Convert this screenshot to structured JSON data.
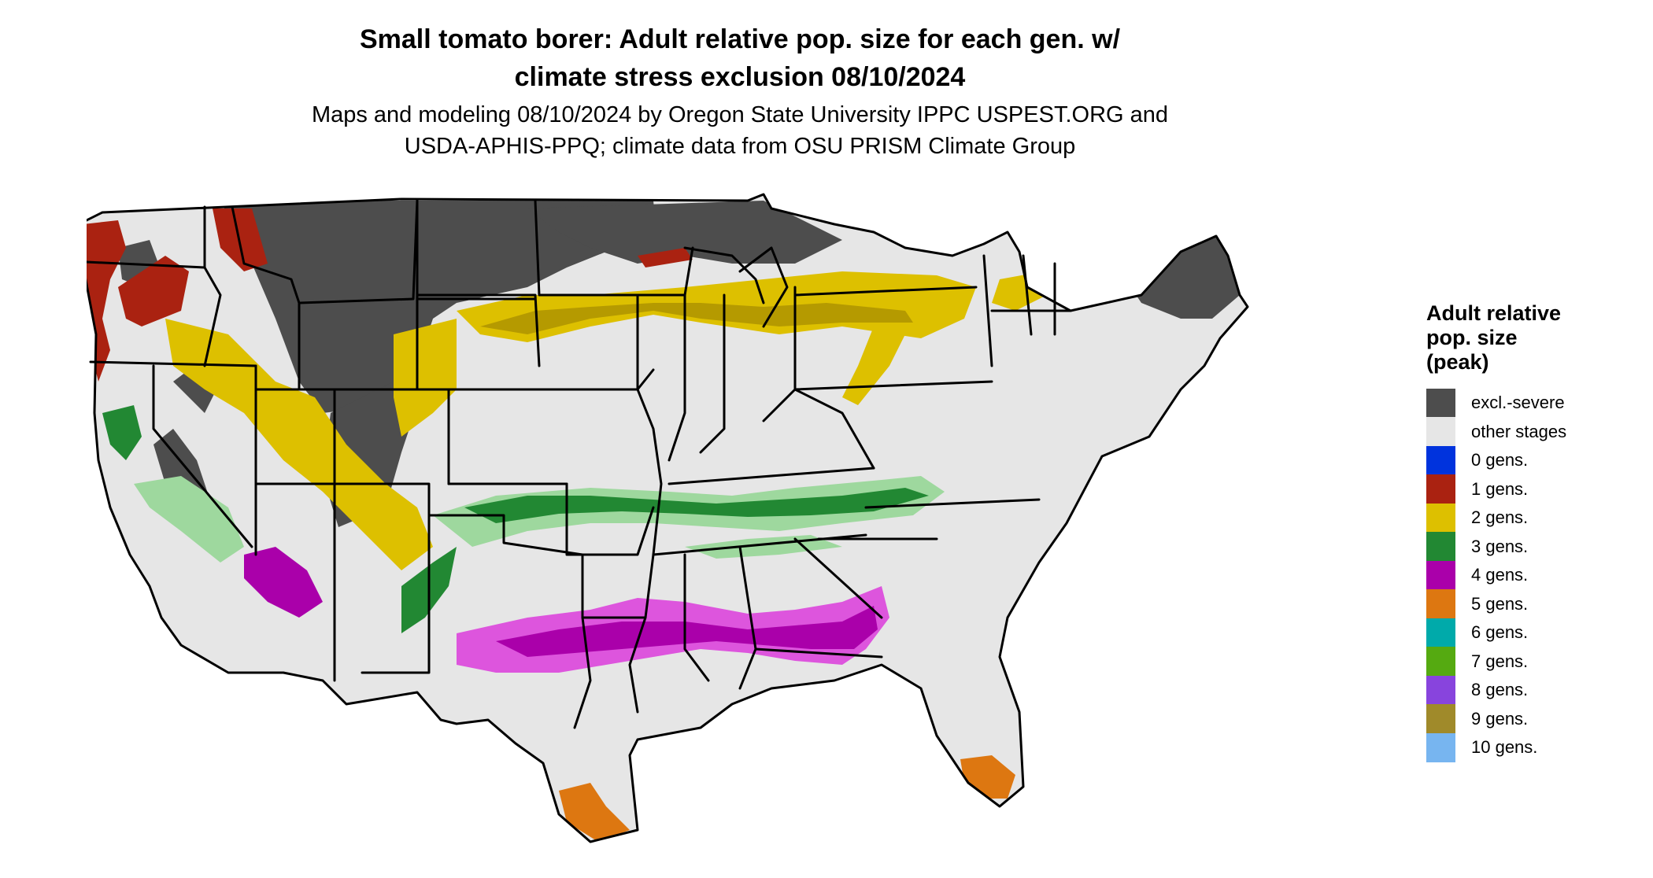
{
  "header": {
    "title_line1": "Small tomato borer: Adult relative pop. size for each gen. w/",
    "title_line2": "climate stress exclusion 08/10/2024",
    "subtitle_line1": "Maps and modeling 08/10/2024 by Oregon State University IPPC USPEST.ORG and",
    "subtitle_line2": "USDA-APHIS-PPQ; climate data from OSU PRISM Climate Group"
  },
  "legend": {
    "title_line1": "Adult relative",
    "title_line2": "pop. size",
    "title_line3": "(peak)",
    "items": [
      {
        "label": "excl.-severe",
        "color": "#4d4d4d"
      },
      {
        "label": "other stages",
        "color": "#e6e6e6"
      },
      {
        "label": "0 gens.",
        "color": "#0033dd"
      },
      {
        "label": "1 gens.",
        "color": "#aa2211"
      },
      {
        "label": "2 gens.",
        "color": "#ddc000"
      },
      {
        "label": "3 gens.",
        "color": "#228833"
      },
      {
        "label": "4 gens.",
        "color": "#aa00aa"
      },
      {
        "label": "5 gens.",
        "color": "#dd7711"
      },
      {
        "label": "6 gens.",
        "color": "#00aaaa"
      },
      {
        "label": "7 gens.",
        "color": "#55aa11"
      },
      {
        "label": "8 gens.",
        "color": "#8844dd"
      },
      {
        "label": "9 gens.",
        "color": "#a08a2a"
      },
      {
        "label": "10 gens.",
        "color": "#77b5f0"
      }
    ]
  },
  "map_colors": {
    "land": "#e6e6e6",
    "excluded": "#4d4d4d",
    "gen1": "#aa2211",
    "gen2": "#ddc000",
    "gen2_dark": "#b59a00",
    "gen3": "#228833",
    "gen3_light": "#9ed89e",
    "gen4": "#aa00aa",
    "gen4_light": "#dd55dd",
    "gen5": "#dd7711",
    "border": "#000000"
  }
}
